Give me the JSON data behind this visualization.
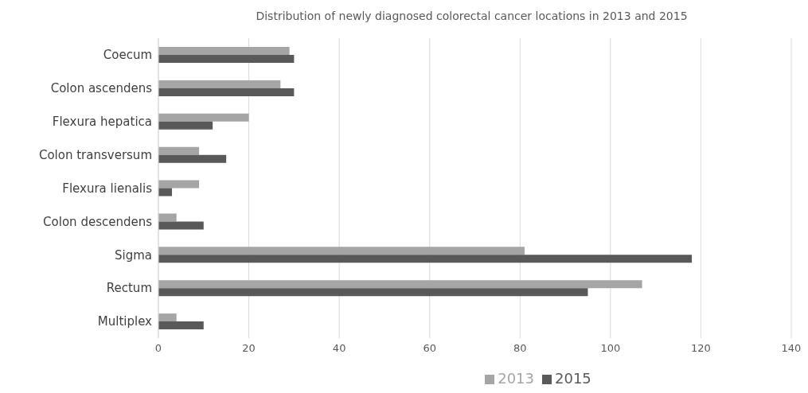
{
  "chart_data": {
    "type": "bar",
    "orientation": "horizontal",
    "title": "Distribution of newly diagnosed colorectal cancer locations in 2013 and 2015",
    "categories": [
      "Coecum",
      "Colon ascendens",
      "Flexura hepatica",
      "Colon transversum",
      "Flexura lienalis",
      "Colon descendens",
      "Sigma",
      "Rectum",
      "Multiplex"
    ],
    "series": [
      {
        "name": "2013",
        "color": "#a5a5a5",
        "values": [
          29,
          27,
          20,
          9,
          9,
          4,
          81,
          107,
          4
        ]
      },
      {
        "name": "2015",
        "color": "#595959",
        "values": [
          30,
          30,
          12,
          15,
          3,
          10,
          118,
          95,
          10
        ]
      }
    ],
    "xlim": [
      0,
      140
    ],
    "xticks": [
      0,
      20,
      40,
      60,
      80,
      100,
      120,
      140
    ],
    "grid": "x",
    "legend": "bottom"
  }
}
